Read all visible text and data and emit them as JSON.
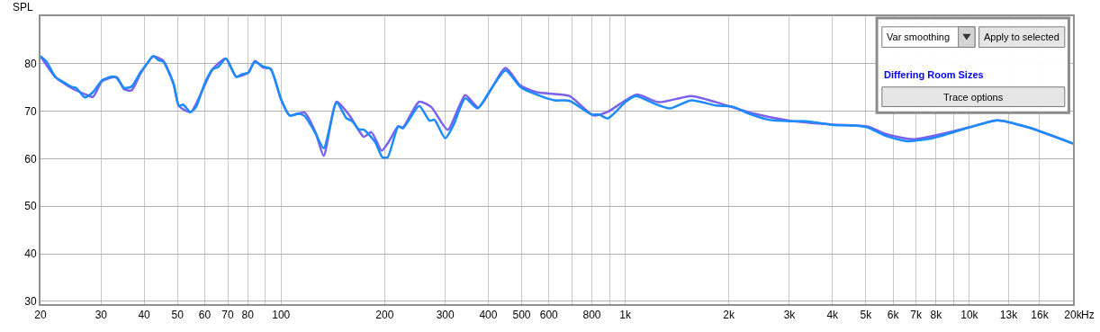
{
  "chart_data": {
    "type": "line",
    "title": "Differing Room Sizes",
    "ylabel": "SPL",
    "annotations": [
      "Var smoothing",
      "Apply to selected",
      "Trace options"
    ],
    "log": "x",
    "grid": true,
    "marker": "none",
    "line_style": "solid",
    "xlim": [
      20,
      20000
    ],
    "ylim": [
      29.4,
      90
    ],
    "xticks": [
      20,
      30,
      40,
      50,
      60,
      70,
      80,
      {
        "value": 90,
        "label": null
      },
      100,
      200,
      300,
      400,
      500,
      600,
      {
        "value": 700,
        "label": null
      },
      800,
      {
        "value": 900,
        "label": null
      },
      {
        "value": 1000,
        "label": "1k"
      },
      {
        "value": 2000,
        "label": "2k"
      },
      {
        "value": 3000,
        "label": "3k"
      },
      {
        "value": 4000,
        "label": "4k"
      },
      {
        "value": 5000,
        "label": "5k"
      },
      {
        "value": 6000,
        "label": "6k"
      },
      {
        "value": 7000,
        "label": "7k"
      },
      {
        "value": 8000,
        "label": "8k"
      },
      {
        "value": 9000,
        "label": null
      },
      {
        "value": 10000,
        "label": "10k"
      },
      {
        "value": 13000,
        "label": "13k"
      },
      {
        "value": 16000,
        "label": "16k"
      },
      {
        "value": 20000,
        "label": "20k"
      }
    ],
    "xlabel": "Hz",
    "yticks": [
      30,
      40,
      50,
      60,
      70,
      80
    ],
    "series": [
      {
        "color": "#7b61f0",
        "x": [
          20,
          22.1,
          24.7,
          26.9,
          28.4,
          30.2,
          33.3,
          35.0,
          36.8,
          39.1,
          42.5,
          45.4,
          48.7,
          50.5,
          54.6,
          60.1,
          63.2,
          69.1,
          74.1,
          80.3,
          83.9,
          88.7,
          93.3,
          100,
          106,
          117,
          126,
          133,
          145,
          158,
          168,
          174,
          183,
          196,
          204,
          219,
          226,
          252,
          273,
          305,
          343,
          375,
          449,
          496,
          553,
          688,
          808,
          891,
          1077,
          1253,
          1556,
          1836,
          2305,
          3016,
          4027,
          5056,
          5723,
          6893,
          10000,
          12050,
          14810,
          20000
        ],
        "values": [
          81.6,
          77.2,
          74.8,
          73.6,
          73.0,
          76.3,
          77.2,
          74.6,
          74.4,
          78.0,
          81.5,
          80.7,
          75.8,
          71.1,
          69.8,
          75.6,
          78.8,
          81.1,
          77.3,
          78.1,
          80.6,
          79.2,
          78.9,
          72.5,
          69.1,
          69.7,
          65.5,
          60.6,
          72.0,
          69.1,
          66.0,
          64.6,
          65.6,
          61.7,
          63.2,
          66.8,
          66.6,
          72.0,
          70.9,
          66.1,
          73.4,
          70.8,
          79.1,
          75.4,
          74.0,
          73.2,
          69.1,
          69.9,
          73.5,
          71.9,
          73.2,
          71.9,
          69.7,
          68.0,
          67.2,
          66.8,
          65.2,
          64.1,
          66.6,
          68.1,
          66.6,
          63.2
        ]
      },
      {
        "color": "#1a8cff",
        "x": [
          20,
          20.8,
          22.1,
          23.5,
          24.7,
          25.4,
          26.9,
          28.4,
          30.2,
          32.3,
          33.3,
          35.0,
          36.8,
          39.1,
          40.7,
          42.5,
          44.1,
          45.4,
          48.7,
          50.5,
          51.9,
          54.6,
          56.6,
          60.1,
          63.2,
          65.7,
          69.1,
          74.1,
          77.1,
          80.3,
          83.9,
          88.7,
          93.3,
          100,
          106,
          112,
          117,
          126,
          133,
          145,
          155,
          161,
          168,
          174,
          182,
          188,
          197,
          204,
          219,
          226,
          252,
          270,
          279,
          300,
          317,
          343,
          372,
          402,
          449,
          496,
          553,
          623,
          688,
          799,
          840,
          891,
          1004,
          1073,
          1214,
          1347,
          1556,
          1836,
          2036,
          2305,
          2609,
          3016,
          3344,
          4027,
          4655,
          5056,
          5723,
          6613,
          7800,
          10000,
          12050,
          14810,
          20000
        ],
        "values": [
          81.6,
          80.5,
          77.2,
          76.0,
          75.1,
          74.9,
          72.9,
          74.0,
          76.5,
          77.3,
          77.0,
          74.9,
          75.2,
          78.3,
          79.9,
          81.6,
          80.7,
          80.5,
          75.8,
          71.1,
          71.4,
          69.8,
          70.9,
          76.0,
          78.8,
          79.3,
          81.1,
          77.2,
          77.8,
          78.1,
          80.4,
          79.4,
          78.9,
          72.5,
          69.1,
          69.5,
          69.0,
          65.3,
          62.2,
          71.8,
          68.5,
          67.9,
          66.2,
          66.1,
          64.7,
          63.4,
          60.3,
          60.3,
          66.8,
          66.4,
          71.1,
          68.0,
          68.2,
          64.3,
          67.1,
          72.7,
          70.6,
          74.0,
          78.6,
          75.1,
          73.5,
          72.3,
          72.2,
          69.3,
          69.3,
          68.5,
          72.0,
          73.2,
          71.6,
          70.6,
          72.3,
          71.2,
          71.0,
          69.4,
          68.2,
          67.9,
          67.9,
          67.1,
          67.0,
          66.6,
          64.8,
          63.7,
          64.3,
          66.6,
          68.1,
          66.6,
          63.2
        ]
      }
    ]
  }
}
